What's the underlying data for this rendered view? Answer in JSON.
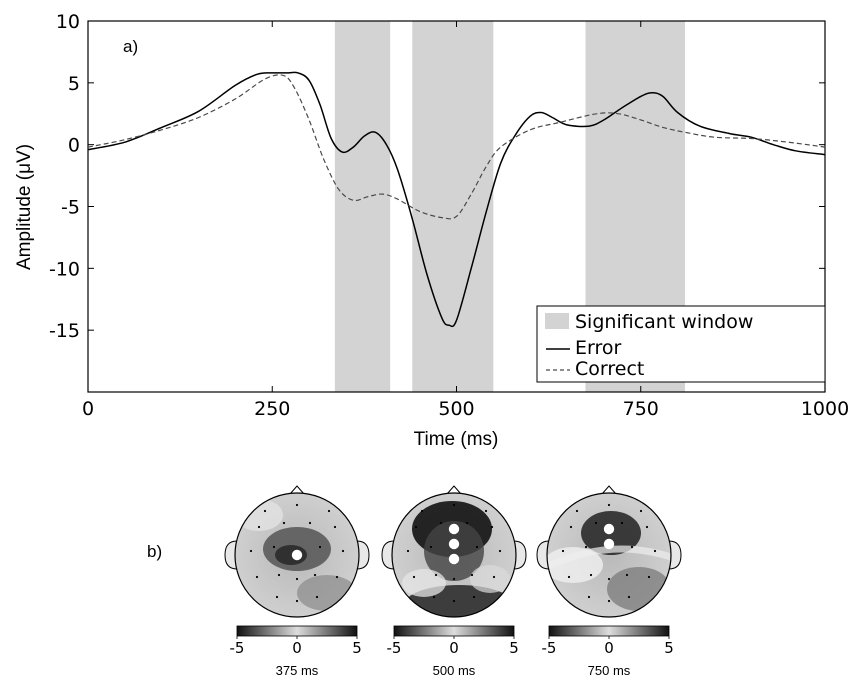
{
  "chart_data": [
    {
      "type": "line",
      "panel_label": "a)",
      "xlabel": "Time (ms)",
      "ylabel": "Amplitude (μV)",
      "xlim": [
        0,
        1000
      ],
      "ylim": [
        -20,
        10
      ],
      "xticks": [
        0,
        250,
        500,
        750,
        1000
      ],
      "yticks": [
        10,
        5,
        0,
        -5,
        -10,
        -15
      ],
      "grid": false,
      "legend_position": "bottom-right",
      "legend": {
        "window_label": "Significant window",
        "error_label": "Error",
        "correct_label": "Correct"
      },
      "significant_windows": [
        [
          335,
          410
        ],
        [
          440,
          550
        ],
        [
          675,
          810
        ]
      ],
      "series": [
        {
          "name": "Error",
          "style": "solid",
          "color": "#000000",
          "x": [
            0,
            50,
            100,
            150,
            200,
            230,
            250,
            270,
            285,
            300,
            315,
            330,
            345,
            360,
            375,
            390,
            405,
            420,
            440,
            460,
            480,
            490,
            500,
            520,
            540,
            560,
            580,
            600,
            615,
            630,
            650,
            680,
            700,
            725,
            750,
            765,
            780,
            800,
            830,
            870,
            900,
            930,
            960,
            1000
          ],
          "y": [
            -0.4,
            0.2,
            1.4,
            2.7,
            4.8,
            5.7,
            5.8,
            5.8,
            5.8,
            5.2,
            3.2,
            0.5,
            -0.6,
            -0.2,
            0.7,
            1.0,
            0.0,
            -2.0,
            -6.0,
            -10.5,
            -14.0,
            -14.6,
            -14.2,
            -10.0,
            -5.5,
            -1.5,
            0.8,
            2.3,
            2.6,
            2.2,
            1.6,
            1.5,
            2.0,
            3.0,
            3.9,
            4.2,
            3.9,
            2.6,
            1.5,
            0.9,
            0.6,
            0.0,
            -0.5,
            -0.8
          ]
        },
        {
          "name": "Correct",
          "style": "dashed",
          "color": "#4a4a4a",
          "x": [
            0,
            50,
            100,
            150,
            200,
            240,
            265,
            280,
            300,
            320,
            340,
            360,
            380,
            400,
            420,
            450,
            480,
            500,
            520,
            540,
            560,
            600,
            640,
            690,
            720,
            750,
            780,
            810,
            850,
            900,
            950,
            1000
          ],
          "y": [
            -0.2,
            0.4,
            1.2,
            2.2,
            3.7,
            5.3,
            5.6,
            4.6,
            2.0,
            -1.2,
            -3.6,
            -4.5,
            -4.2,
            -4.0,
            -4.4,
            -5.4,
            -5.9,
            -5.8,
            -4.0,
            -1.8,
            -0.2,
            1.2,
            1.8,
            2.5,
            2.5,
            2.0,
            1.4,
            1.0,
            0.6,
            0.5,
            0.2,
            -0.2
          ]
        }
      ]
    },
    {
      "type": "heatmap",
      "panel_label": "b)",
      "colorbar_ticks": [
        "-5",
        "0",
        "5"
      ],
      "colorbar_range": [
        -5,
        5
      ],
      "maps": [
        {
          "time_label": "375 ms",
          "highlighted_electrodes": 1
        },
        {
          "time_label": "500 ms",
          "highlighted_electrodes": 3
        },
        {
          "time_label": "750 ms",
          "highlighted_electrodes": 2
        }
      ]
    }
  ]
}
